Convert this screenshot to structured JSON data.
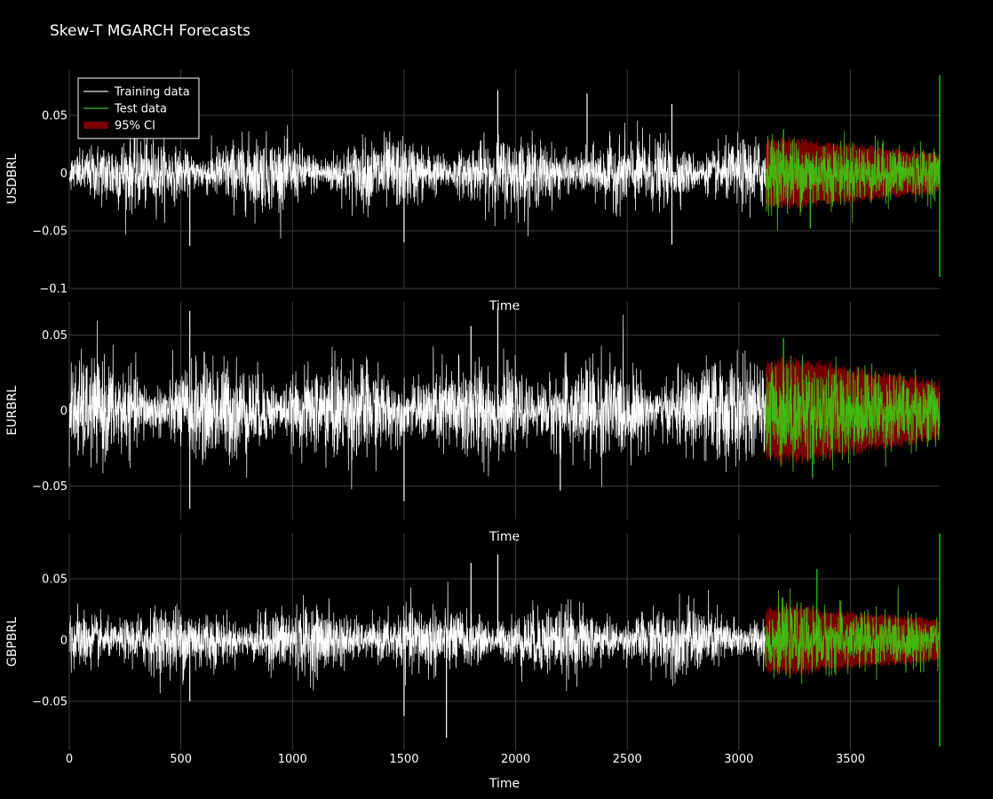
{
  "chart_data": {
    "type": "line",
    "title": "Skew-T MGARCH Forecasts",
    "xlabel": "Time",
    "xlim": [
      0,
      3900
    ],
    "x_ticks": [
      0,
      500,
      1000,
      1500,
      2000,
      2500,
      3000,
      3500
    ],
    "train_end": 3120,
    "grid": true,
    "legend_position": "top-left",
    "legend": [
      {
        "label": "Training data",
        "color": "#bdbdbd",
        "kind": "line"
      },
      {
        "label": "Test data",
        "color": "#2ca02c",
        "kind": "line"
      },
      {
        "label": "95% CI",
        "color": "#7a0000",
        "kind": "band"
      }
    ],
    "colors": {
      "train": "#ffffff",
      "test": "#22dd22",
      "ci": "#7a0000",
      "overlap": "#6a8a00"
    },
    "subplots": [
      {
        "ylabel": "USDBRL",
        "ylim": [
          -0.1,
          0.09
        ],
        "y_ticks": [
          {
            "value": 0.05,
            "label": "0.05"
          },
          {
            "value": 0,
            "label": "0"
          },
          {
            "value": -0.05,
            "label": "−0.05"
          },
          {
            "value": -0.1,
            "label": "−0.1"
          }
        ],
        "x_title": "Time",
        "base_amplitude": 0.011,
        "ci_half_width": [
          0.026,
          0.02,
          0.016
        ],
        "spikes": [
          {
            "x": 1920,
            "y": 0.072
          },
          {
            "x": 2320,
            "y": 0.069
          },
          {
            "x": 2700,
            "y": 0.06
          },
          {
            "x": 2700,
            "y": -0.062
          },
          {
            "x": 1500,
            "y": -0.06
          },
          {
            "x": 540,
            "y": -0.063
          },
          {
            "x": 3900,
            "y": 0.085
          },
          {
            "x": 3900,
            "y": -0.09
          },
          {
            "x": 3200,
            "y": 0.038
          },
          {
            "x": 3320,
            "y": -0.048
          }
        ]
      },
      {
        "ylabel": "EURBRL",
        "ylim": [
          -0.072,
          0.072
        ],
        "y_ticks": [
          {
            "value": 0.05,
            "label": "0.05"
          },
          {
            "value": 0,
            "label": "0"
          },
          {
            "value": -0.05,
            "label": "−0.05"
          }
        ],
        "x_title": "Time",
        "base_amplitude": 0.012,
        "ci_half_width": [
          0.03,
          0.02,
          0.018
        ],
        "spikes": [
          {
            "x": 540,
            "y": 0.066
          },
          {
            "x": 540,
            "y": -0.065
          },
          {
            "x": 1920,
            "y": 0.068
          },
          {
            "x": 1500,
            "y": -0.06
          },
          {
            "x": 2200,
            "y": -0.053
          },
          {
            "x": 3200,
            "y": 0.048
          },
          {
            "x": 3330,
            "y": -0.045
          },
          {
            "x": 1800,
            "y": 0.056
          }
        ]
      },
      {
        "ylabel": "GBPBRL",
        "ylim": [
          -0.09,
          0.087
        ],
        "y_ticks": [
          {
            "value": 0.05,
            "label": "0.05"
          },
          {
            "value": 0,
            "label": "0"
          },
          {
            "value": -0.05,
            "label": "−0.05"
          }
        ],
        "x_title": "Time",
        "base_amplitude": 0.01,
        "ci_half_width": [
          0.024,
          0.02,
          0.016
        ],
        "spikes": [
          {
            "x": 1920,
            "y": 0.07
          },
          {
            "x": 1800,
            "y": 0.063
          },
          {
            "x": 1690,
            "y": -0.08
          },
          {
            "x": 1500,
            "y": -0.062
          },
          {
            "x": 540,
            "y": -0.05
          },
          {
            "x": 3900,
            "y": 0.087
          },
          {
            "x": 3900,
            "y": -0.087
          },
          {
            "x": 3350,
            "y": 0.058
          }
        ]
      }
    ]
  }
}
